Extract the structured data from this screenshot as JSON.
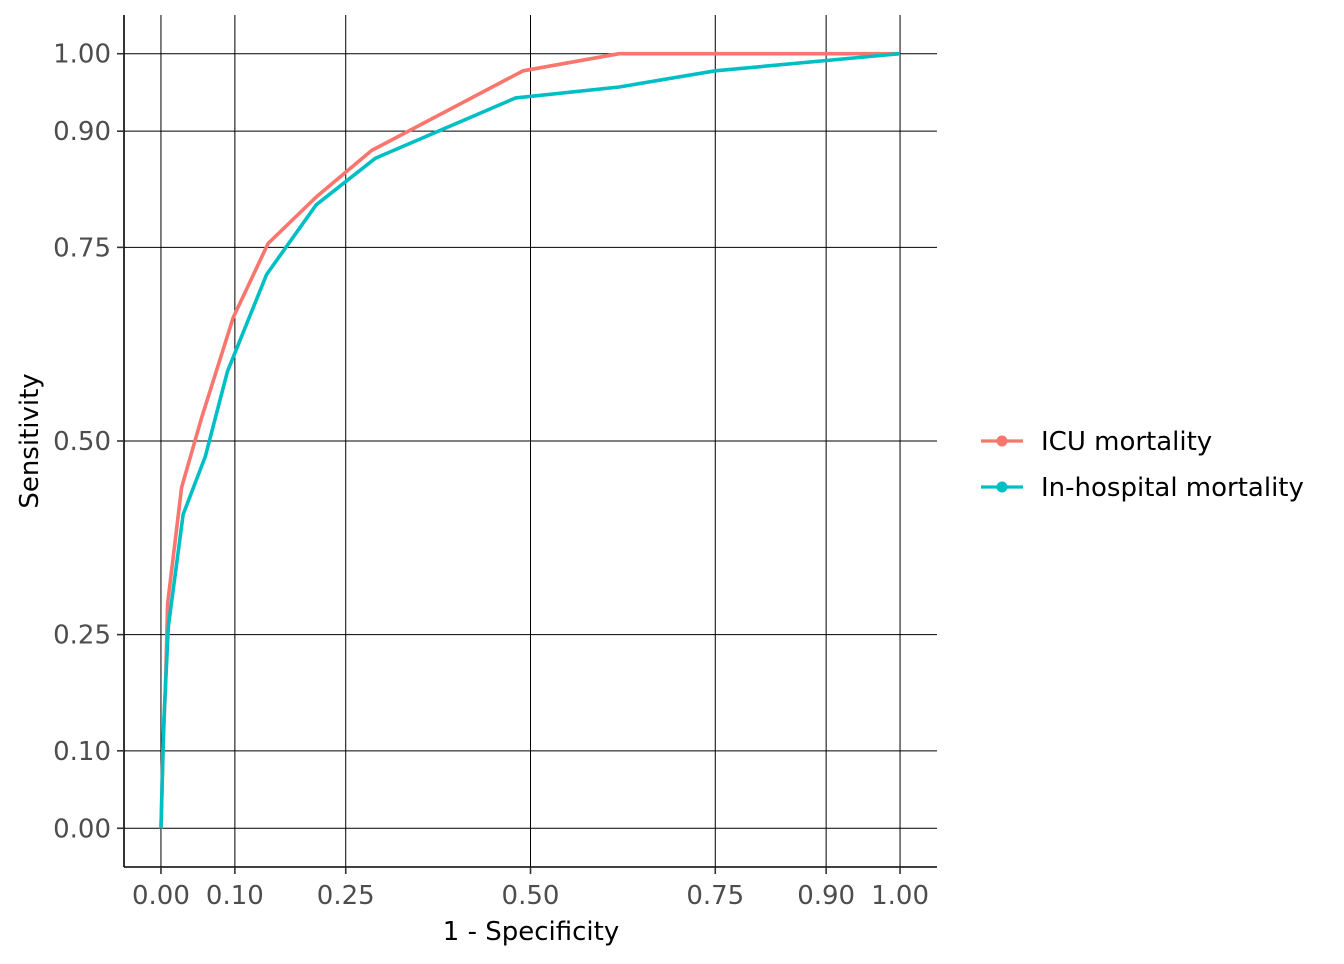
{
  "chart_data": {
    "type": "line",
    "title": "",
    "xlabel": "1 - Specificity",
    "ylabel": "Sensitivity",
    "xlim": [
      -0.05,
      1.05
    ],
    "ylim": [
      -0.05,
      1.05
    ],
    "x_ticks": [
      0.0,
      0.1,
      0.25,
      0.5,
      0.75,
      0.9,
      1.0
    ],
    "x_tick_labels": [
      "0.00",
      "0.10",
      "0.25",
      "0.50",
      "0.75",
      "0.90",
      "1.00"
    ],
    "y_ticks": [
      0.0,
      0.1,
      0.25,
      0.5,
      0.75,
      0.9,
      1.0
    ],
    "y_tick_labels": [
      "0.00",
      "0.10",
      "0.25",
      "0.50",
      "0.75",
      "0.90",
      "1.00"
    ],
    "grid": true,
    "legend_position": "right",
    "series": [
      {
        "name": "ICU mortality",
        "color": "#F8766D",
        "points": [
          [
            0.0,
            0.0
          ],
          [
            0.003,
            0.11
          ],
          [
            0.006,
            0.18
          ],
          [
            0.009,
            0.29
          ],
          [
            0.028,
            0.44
          ],
          [
            0.055,
            0.53
          ],
          [
            0.098,
            0.66
          ],
          [
            0.145,
            0.755
          ],
          [
            0.21,
            0.815
          ],
          [
            0.285,
            0.875
          ],
          [
            0.49,
            0.978
          ],
          [
            0.62,
            1.0
          ],
          [
            1.0,
            1.0
          ]
        ]
      },
      {
        "name": "In-hospital mortality",
        "color": "#00BFC4",
        "points": [
          [
            0.0,
            0.0
          ],
          [
            0.002,
            0.07
          ],
          [
            0.004,
            0.14
          ],
          [
            0.01,
            0.26
          ],
          [
            0.03,
            0.405
          ],
          [
            0.06,
            0.48
          ],
          [
            0.09,
            0.59
          ],
          [
            0.143,
            0.715
          ],
          [
            0.21,
            0.805
          ],
          [
            0.29,
            0.865
          ],
          [
            0.48,
            0.943
          ],
          [
            0.62,
            0.957
          ],
          [
            0.75,
            0.978
          ],
          [
            1.0,
            1.0
          ]
        ]
      }
    ]
  }
}
